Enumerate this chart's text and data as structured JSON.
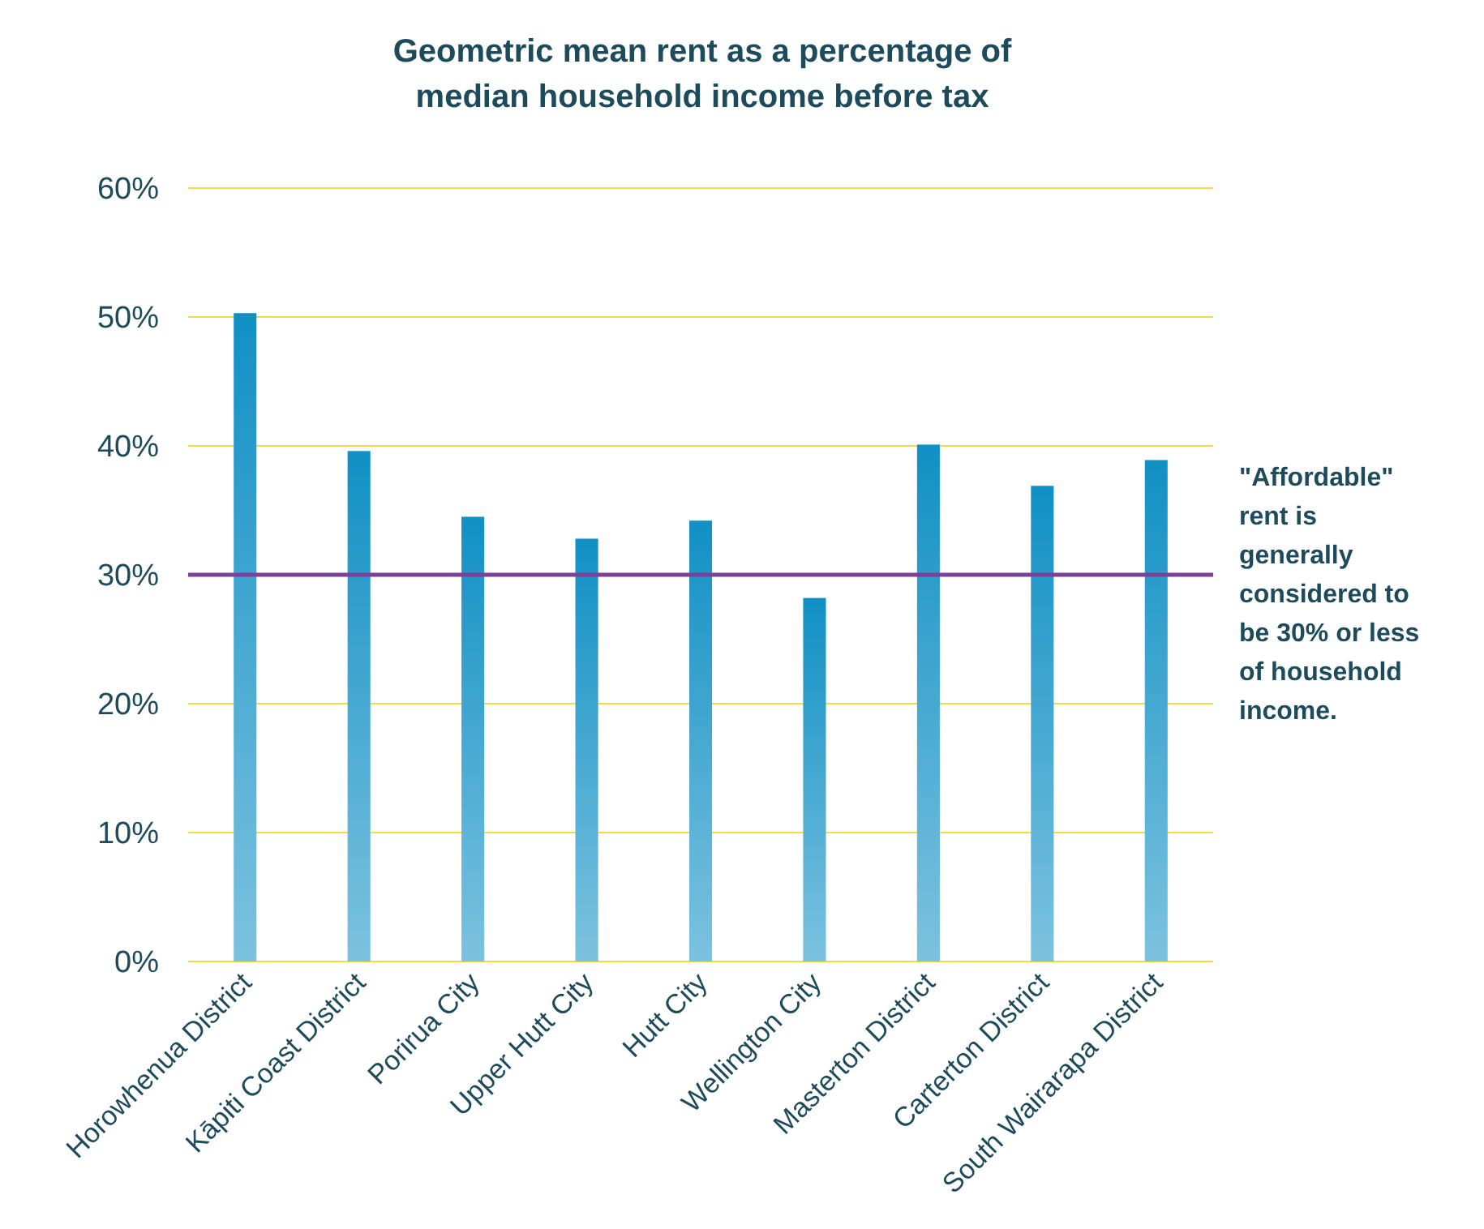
{
  "chart_data": {
    "type": "bar",
    "title": "Geometric mean rent as a percentage of median household income before tax",
    "categories": [
      "Horowhenua District",
      "Kāpiti Coast District",
      "Porirua City",
      "Upper Hutt City",
      "Hutt City",
      "Wellington City",
      "Masterton District",
      "Carterton District",
      "South Wairarapa District"
    ],
    "values": [
      50.3,
      39.6,
      34.5,
      32.8,
      34.2,
      28.2,
      40.1,
      36.9,
      38.9
    ],
    "color": "#1190c4",
    "ylim": [
      0,
      60
    ],
    "yticks": [
      {
        "value": 0,
        "label": "0%"
      },
      {
        "value": 10,
        "label": "10%"
      },
      {
        "value": 20,
        "label": "20%"
      },
      {
        "value": 30,
        "label": "30%"
      },
      {
        "value": 40,
        "label": "40%"
      },
      {
        "value": 50,
        "label": "50%"
      },
      {
        "value": 60,
        "label": "60%"
      }
    ],
    "grid": "y",
    "ref_lines": [
      {
        "axis": "y",
        "value": 30,
        "label": "\"Affordable\" rent is generally considered to be 30% or less of household income.",
        "color": "#7d3f98"
      }
    ]
  }
}
